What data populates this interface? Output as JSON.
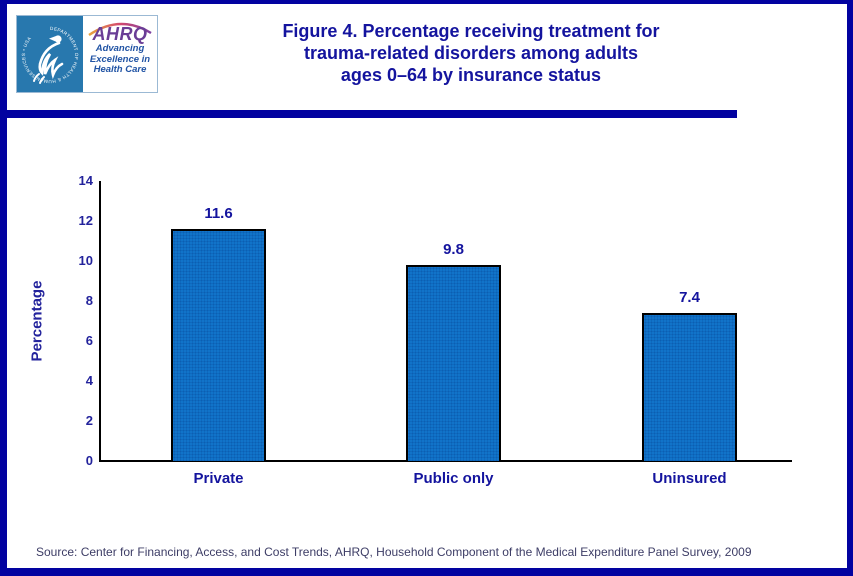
{
  "header": {
    "title_lines": [
      "Figure 4. Percentage receiving treatment for",
      "trauma-related disorders among adults",
      "ages 0–64 by insurance status"
    ],
    "logo": {
      "hhs_seal_text": "DEPARTMENT OF HEALTH & HUMAN SERVICES • USA",
      "ahrq_acronym": "AHRQ",
      "tagline_lines": [
        "Advancing",
        "Excellence in",
        "Health Care"
      ]
    }
  },
  "chart_data": {
    "type": "bar",
    "title": "Figure 4. Percentage receiving treatment for trauma-related disorders among adults ages 0–64 by insurance status",
    "categories": [
      "Private",
      "Public only",
      "Uninsured"
    ],
    "values": [
      11.6,
      9.8,
      7.4
    ],
    "value_labels": [
      "11.6",
      "9.8",
      "7.4"
    ],
    "xlabel": "",
    "ylabel": "Percentage",
    "ylim": [
      0,
      14
    ],
    "yticks": [
      0,
      2,
      4,
      6,
      8,
      10,
      12,
      14
    ],
    "grid": false,
    "legend": false,
    "bar_color": "#1173c9",
    "bar_border_color": "#000000",
    "label_color": "#14149e"
  },
  "footer": {
    "source": "Source: Center for Financing, Access, and Cost Trends, AHRQ, Household Component of the Medical Expenditure Panel Survey, 2009"
  },
  "colors": {
    "page_border_navy": "#0202a0",
    "title_navy": "#14149e",
    "axis_tick_navy": "#23239c",
    "ahrq_purple": "#6a3d96",
    "tagline_blue": "#2053a4",
    "hhs_tile_blue": "#2878ae"
  }
}
